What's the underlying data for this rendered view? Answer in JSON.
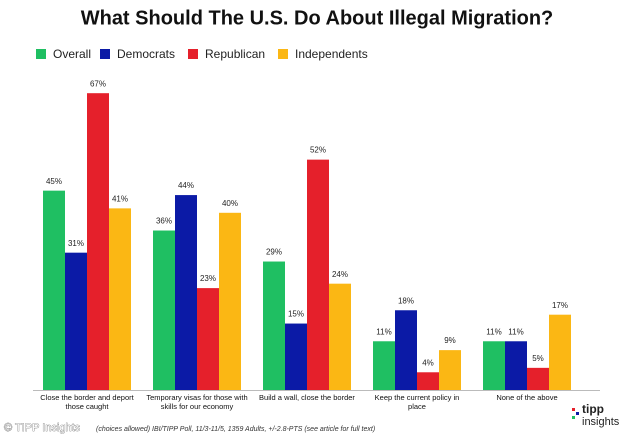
{
  "chart_data": {
    "type": "bar",
    "title": "What Should The U.S. Do About Illegal Migration?",
    "categories": [
      "Close the border and deport those caught",
      "Temporary visas for those with skills for our economy",
      "Build a wall, close the border",
      "Keep the current policy in place",
      "None of the above"
    ],
    "series": [
      {
        "name": "Overall",
        "color": "#1fbf62",
        "values": [
          45,
          36,
          29,
          11,
          11
        ],
        "value_labels": [
          "45%",
          "36%",
          "29%",
          "11%",
          "11%"
        ]
      },
      {
        "name": "Democrats",
        "color": "#0b1aa6",
        "values": [
          31,
          44,
          15,
          18,
          11
        ],
        "value_labels": [
          "31%",
          "44%",
          "15%",
          "18%",
          "11%"
        ]
      },
      {
        "name": "Republican",
        "color": "#e5202b",
        "values": [
          67,
          23,
          52,
          4,
          5
        ],
        "value_labels": [
          "67%",
          "23%",
          "52%",
          "4%",
          "5%"
        ]
      },
      {
        "name": "Independents",
        "color": "#fbb714",
        "values": [
          41,
          40,
          24,
          9,
          17
        ],
        "value_labels": [
          "41%",
          "40%",
          "24%",
          "9%",
          "17%"
        ]
      }
    ],
    "legend": "top-left",
    "source": "(choices allowed) IBI/TIPP Poll, 11/3-11/5, 1359 Adults, +/-2.8-PTS (see article for full text)",
    "watermark": "© TIPP Insights",
    "logo": [
      "tipp",
      "insights"
    ]
  }
}
